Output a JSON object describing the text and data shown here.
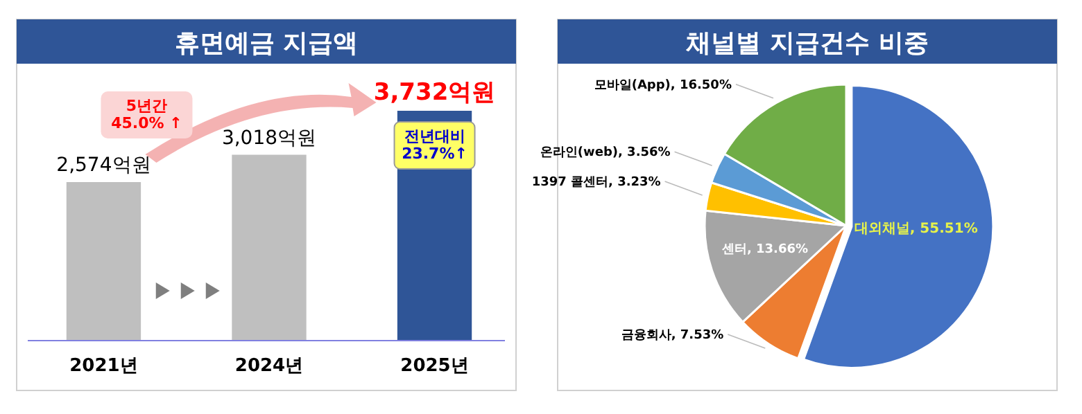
{
  "chart_data": [
    {
      "type": "bar",
      "title": "휴면예금 지급액",
      "categories": [
        "2021년",
        "2024년",
        "2025년"
      ],
      "values": [
        2574,
        3018,
        3732
      ],
      "colors": [
        "#bfbfbf",
        "#bfbfbf",
        "#2f5597"
      ],
      "value_labels": [
        "2,574억원",
        "3,018억원",
        "3,732억원"
      ],
      "annotations": [
        "5년간\n45.0% ↑",
        "전년대비\n23.7%↑"
      ]
    },
    {
      "type": "pie",
      "title": "채널별 지급건수 비중",
      "categories": [
        "대외채널",
        "금융회사",
        "센터",
        "1397 콜센터",
        "온라인(web)",
        "모바일(App)"
      ],
      "values": [
        55.51,
        7.53,
        13.66,
        3.23,
        3.56,
        16.5
      ],
      "colors": [
        "#4472c4",
        "#ed7d31",
        "#a5a5a5",
        "#ffc000",
        "#5b9bd5",
        "#70ad47"
      ],
      "value_labels": [
        "55.51%",
        "7.53%",
        "13.66%",
        "3.23%",
        "3.56%",
        "16.50%"
      ]
    }
  ]
}
